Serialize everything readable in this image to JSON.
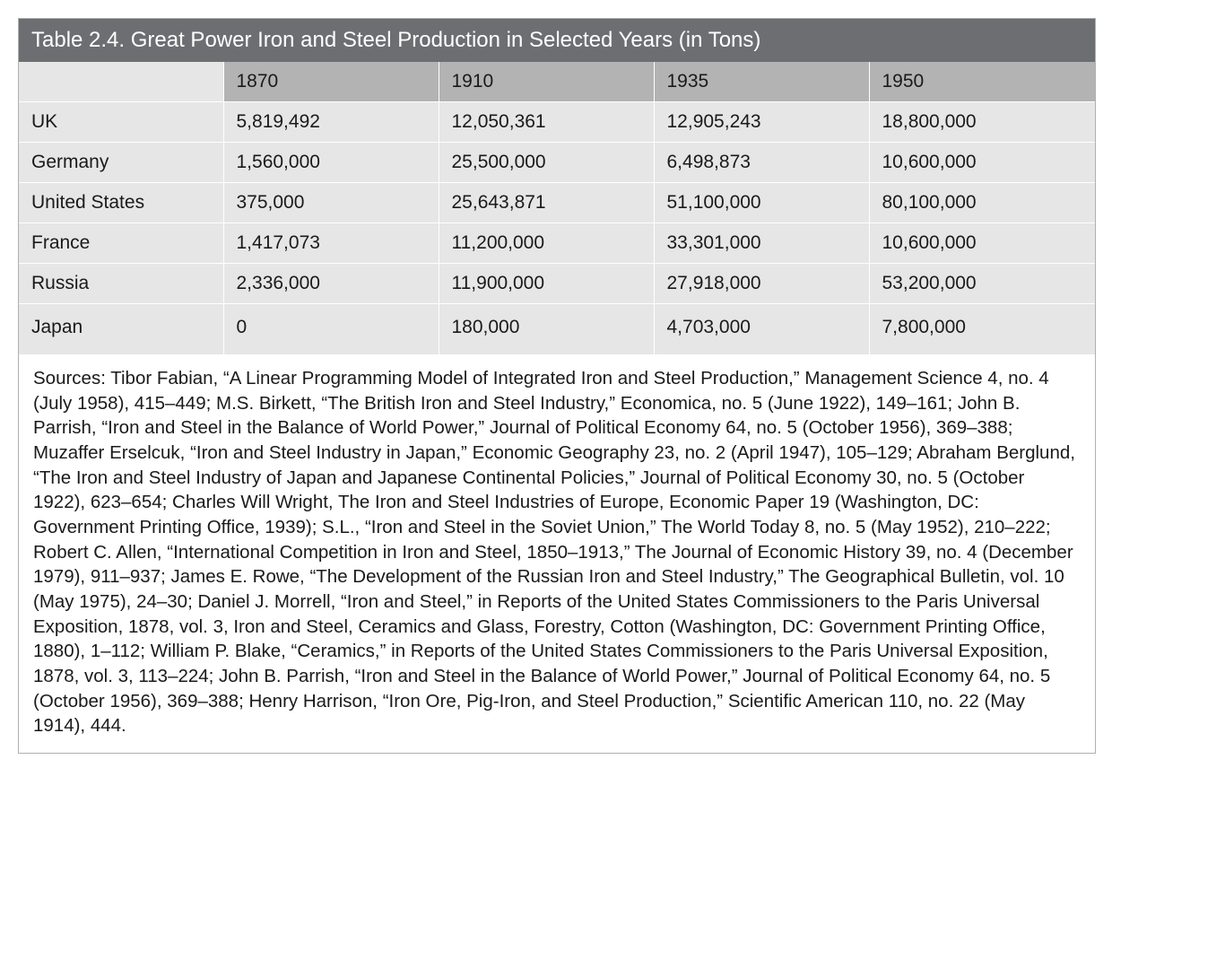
{
  "table": {
    "title": "Table 2.4. Great Power Iron and Steel Production in Selected Years (in Tons)",
    "columns": [
      "",
      "1870",
      "1910",
      "1935",
      "1950"
    ],
    "rows": [
      [
        "UK",
        "5,819,492",
        "12,050,361",
        "12,905,243",
        "18,800,000"
      ],
      [
        "Germany",
        "1,560,000",
        "25,500,000",
        "6,498,873",
        "10,600,000"
      ],
      [
        "United States",
        "375,000",
        "25,643,871",
        "51,100,000",
        "80,100,000"
      ],
      [
        "France",
        "1,417,073",
        "11,200,000",
        "33,301,000",
        "10,600,000"
      ],
      [
        "Russia",
        "2,336,000",
        "11,900,000",
        "27,918,000",
        "53,200,000"
      ],
      [
        "Japan",
        "0",
        "180,000",
        "4,703,000",
        "7,800,000"
      ]
    ],
    "col_widths_pct": [
      19,
      20,
      20,
      20,
      21
    ],
    "title_bg": "#6d6e71",
    "title_color": "#ffffff",
    "header_bg": "#b3b3b3",
    "body_bg": "#e6e6e6",
    "border_color": "#ffffff",
    "outer_border": "#b0b0b0",
    "title_fontsize": 24,
    "cell_fontsize": 21
  },
  "sources": "Sources: Tibor Fabian, “A Linear Programming Model of Integrated Iron and Steel Production,” Management Science 4, no. 4 (July 1958), 415–449; M.S. Birkett, “The British Iron and Steel Industry,” Economica, no. 5 (June 1922), 149–161; John B. Parrish, “Iron and Steel in the Balance of World Power,” Journal of Political Economy 64, no. 5 (October 1956), 369–388; Muzaffer Erselcuk, “Iron and Steel Industry in Japan,” Economic Geography 23, no. 2 (April 1947), 105–129; Abraham Berglund, “The Iron and Steel Industry of Japan and Japanese Continental Policies,” Journal of Political Economy 30, no. 5 (October 1922), 623–654; Charles Will Wright, The Iron and Steel Industries of Europe, Economic Paper 19 (Washington, DC: Government Printing Office, 1939); S.L., “Iron and Steel in the Soviet Union,” The World Today 8, no. 5 (May 1952), 210–222; Robert C. Allen, “International Competition in Iron and Steel, 1850–1913,” The Journal of Economic History 39, no. 4 (December 1979), 911–937; James E. Rowe, “The Development of the Russian Iron and Steel Industry,” The Geographical Bulletin, vol. 10 (May 1975), 24–30; Daniel J. Morrell, “Iron and Steel,” in Reports of the United States Commissioners to the Paris Universal Exposition, 1878, vol. 3, Iron and Steel, Ceramics and Glass, Forestry, Cotton (Washington, DC: Government Printing Office, 1880), 1–112; William P. Blake, “Ceramics,” in Reports of the United States Commissioners to the Paris Universal Exposition, 1878, vol. 3, 113–224; John B. Parrish, “Iron and Steel in the Balance of World Power,” Journal of Political Economy 64, no. 5 (October 1956), 369–388; Henry Harrison, “Iron Ore, Pig-Iron, and Steel Production,” Scientific American 110, no. 22 (May 1914), 444."
}
